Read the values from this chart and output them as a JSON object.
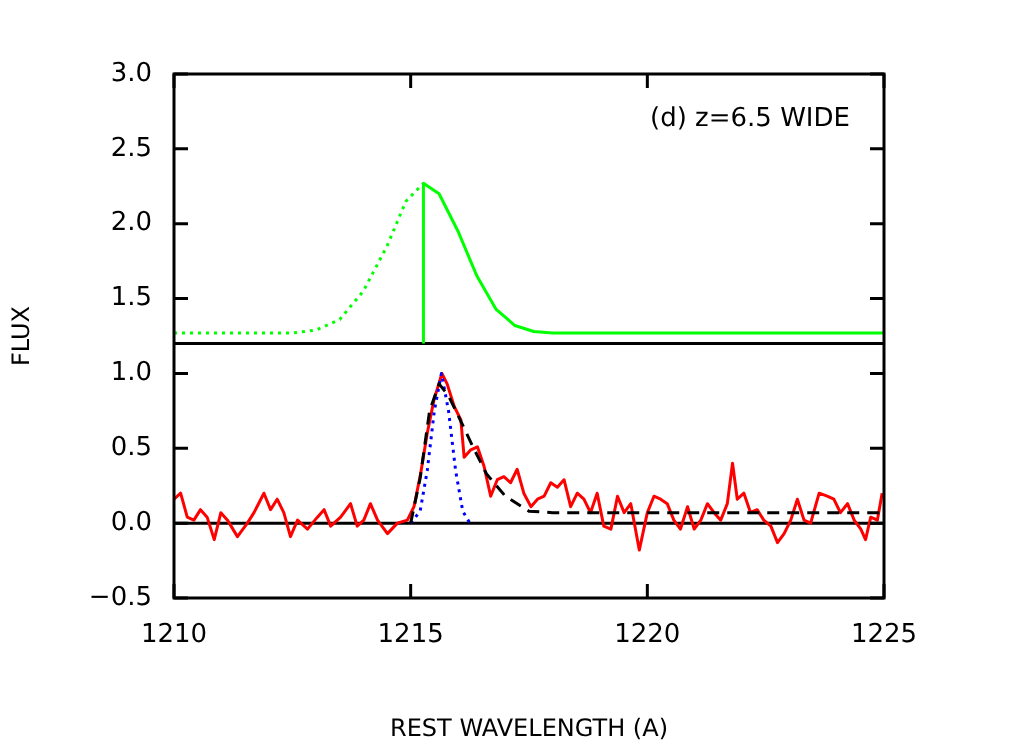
{
  "chart_data": {
    "type": "line",
    "xlabel": "REST WAVELENGTH (A)",
    "ylabel": "FLUX",
    "annotations": [
      "(d) z=6.5 WIDE"
    ],
    "xlim": [
      1210,
      1225
    ],
    "xticks": [
      1210,
      1215,
      1220,
      1225
    ],
    "ylim": [
      -0.5,
      3.0
    ],
    "yticks": [
      {
        "value": -0.5,
        "label": "−0.5"
      },
      {
        "value": 0,
        "label": "0.0"
      },
      {
        "value": 0.5,
        "label": "0.5"
      },
      {
        "value": 1.0,
        "label": "1.0"
      },
      {
        "value": 1.5,
        "label": "1.5"
      },
      {
        "value": 2.0,
        "label": "2.0"
      },
      {
        "value": 2.5,
        "label": "2.5"
      },
      {
        "value": 3.0,
        "label": "3.0"
      }
    ],
    "grid": false,
    "legend": false,
    "marker": "none",
    "ref_lines": [
      {
        "axis": "y",
        "value": 1.2,
        "color": "#000000",
        "line_style": "solid"
      },
      {
        "axis": "y",
        "value": 0,
        "color": "#000000",
        "line_style": "solid"
      }
    ],
    "series": [
      {
        "color": "#00ff00",
        "line_style": "dotted",
        "x": [
          1210,
          1212.5,
          1213,
          1213.5,
          1214,
          1214.5,
          1214.9,
          1215.27
        ],
        "values": [
          1.27,
          1.27,
          1.29,
          1.36,
          1.55,
          1.85,
          2.15,
          2.27
        ]
      },
      {
        "color": "#00ff00",
        "line_style": "solid",
        "x": [
          1215.27,
          1215.27,
          1215.6,
          1216.0,
          1216.4,
          1216.8,
          1217.2,
          1217.6,
          1218,
          1225
        ],
        "values": [
          1.2,
          2.27,
          2.2,
          1.95,
          1.65,
          1.43,
          1.32,
          1.28,
          1.27,
          1.27
        ]
      },
      {
        "color": "#ff0000",
        "line_style": "solid",
        "x": [
          1210.0,
          1210.14,
          1210.28,
          1210.42,
          1210.56,
          1210.7,
          1210.85,
          1210.99,
          1211.13,
          1211.34,
          1211.55,
          1211.69,
          1211.9,
          1212.04,
          1212.18,
          1212.32,
          1212.46,
          1212.61,
          1212.82,
          1213.03,
          1213.17,
          1213.31,
          1213.52,
          1213.73,
          1213.87,
          1214.01,
          1214.15,
          1214.3,
          1214.51,
          1214.72,
          1214.93,
          1215.07,
          1215.21,
          1215.35,
          1215.49,
          1215.66,
          1215.77,
          1215.92,
          1216.06,
          1216.13,
          1216.27,
          1216.41,
          1216.55,
          1216.69,
          1216.83,
          1216.97,
          1217.11,
          1217.25,
          1217.39,
          1217.54,
          1217.68,
          1217.82,
          1217.96,
          1218.1,
          1218.24,
          1218.38,
          1218.52,
          1218.66,
          1218.8,
          1218.94,
          1219.08,
          1219.23,
          1219.37,
          1219.51,
          1219.65,
          1219.83,
          1220.0,
          1220.14,
          1220.28,
          1220.42,
          1220.56,
          1220.7,
          1220.85,
          1220.99,
          1221.13,
          1221.27,
          1221.41,
          1221.55,
          1221.69,
          1221.8,
          1221.9,
          1222.04,
          1222.18,
          1222.32,
          1222.46,
          1222.61,
          1222.75,
          1222.89,
          1223.03,
          1223.17,
          1223.31,
          1223.45,
          1223.63,
          1223.8,
          1223.94,
          1224.08,
          1224.23,
          1224.37,
          1224.51,
          1224.61,
          1224.72,
          1224.86,
          1224.96
        ],
        "values": [
          0.16,
          0.2,
          0.04,
          0.02,
          0.09,
          0.04,
          -0.11,
          0.07,
          0.02,
          -0.09,
          0.0,
          0.07,
          0.2,
          0.09,
          0.16,
          0.07,
          -0.09,
          0.02,
          -0.04,
          0.04,
          0.09,
          -0.02,
          0.04,
          0.13,
          -0.02,
          0.02,
          0.13,
          0.02,
          -0.07,
          0.0,
          0.02,
          0.11,
          0.33,
          0.6,
          0.82,
          1.0,
          0.93,
          0.78,
          0.69,
          0.44,
          0.49,
          0.51,
          0.38,
          0.18,
          0.29,
          0.31,
          0.27,
          0.36,
          0.2,
          0.11,
          0.16,
          0.18,
          0.27,
          0.24,
          0.29,
          0.11,
          0.2,
          0.16,
          0.07,
          0.2,
          -0.02,
          -0.04,
          0.18,
          0.07,
          0.13,
          -0.18,
          0.07,
          0.18,
          0.16,
          0.13,
          0.02,
          -0.04,
          0.11,
          -0.04,
          0.02,
          0.13,
          0.07,
          0.02,
          0.13,
          0.4,
          0.16,
          0.2,
          0.07,
          0.09,
          0.02,
          -0.02,
          -0.13,
          -0.07,
          0.02,
          0.16,
          0.02,
          0.0,
          0.2,
          0.18,
          0.16,
          0.07,
          0.13,
          0.02,
          -0.04,
          -0.11,
          0.04,
          0.02,
          0.2
        ]
      },
      {
        "color": "#0000ff",
        "line_style": "dotted",
        "x": [
          1215.0,
          1215.2,
          1215.35,
          1215.5,
          1215.65,
          1215.8,
          1215.95,
          1216.1,
          1216.25
        ],
        "values": [
          0,
          0.08,
          0.35,
          0.75,
          1.0,
          0.75,
          0.35,
          0.08,
          0
        ]
      },
      {
        "color": "#000000",
        "line_style": "dashed",
        "x": [
          1215.0,
          1215.2,
          1215.4,
          1215.6,
          1215.8,
          1216.0,
          1216.3,
          1216.6,
          1217.0,
          1217.5,
          1218,
          1225
        ],
        "values": [
          0,
          0.3,
          0.75,
          0.93,
          0.85,
          0.72,
          0.52,
          0.33,
          0.18,
          0.08,
          0.07,
          0.07
        ]
      }
    ]
  }
}
